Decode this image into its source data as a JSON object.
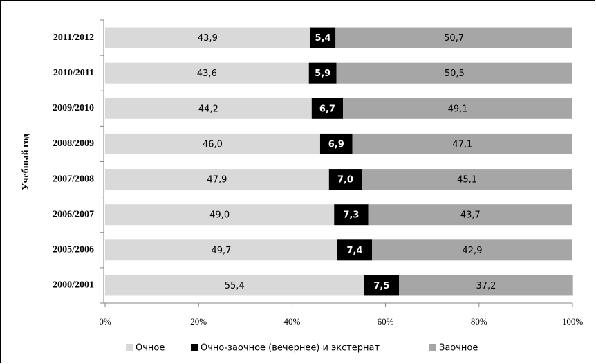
{
  "chart_data": {
    "type": "stacked_barh",
    "ylabel": "Учебный год",
    "categories": [
      "2011/2012",
      "2010/2011",
      "2009/2010",
      "2008/2009",
      "2007/2008",
      "2006/2007",
      "2005/2006",
      "2000/2001"
    ],
    "series": [
      {
        "name": "Очное",
        "color": "#d9d9d9",
        "label_color": "#000000",
        "values": [
          43.9,
          43.6,
          44.2,
          46.0,
          47.9,
          49.0,
          49.7,
          55.4
        ],
        "value_labels": [
          "43,9",
          "43,6",
          "44,2",
          "46,0",
          "47,9",
          "49,0",
          "49,7",
          "55,4"
        ]
      },
      {
        "name": "Очно-заочное (вечернее) и экстернат",
        "color": "#000000",
        "label_color": "#ffffff",
        "values": [
          5.4,
          5.9,
          6.7,
          6.9,
          7.0,
          7.3,
          7.4,
          7.5
        ],
        "value_labels": [
          "5,4",
          "5,9",
          "6,7",
          "6,9",
          "7,0",
          "7,3",
          "7,4",
          "7,5"
        ]
      },
      {
        "name": "Заочное",
        "color": "#a6a6a6",
        "label_color": "#000000",
        "values": [
          50.7,
          50.5,
          49.1,
          47.1,
          45.1,
          43.7,
          42.9,
          37.2
        ],
        "value_labels": [
          "50,7",
          "50,5",
          "49,1",
          "47,1",
          "45,1",
          "43,7",
          "42,9",
          "37,2"
        ]
      }
    ],
    "xlim": [
      0,
      100
    ],
    "xticks": [
      {
        "value": 0,
        "label": "0%"
      },
      {
        "value": 20,
        "label": "20%"
      },
      {
        "value": 40,
        "label": "40%"
      },
      {
        "value": 60,
        "label": "60%"
      },
      {
        "value": 80,
        "label": "80%"
      },
      {
        "value": 100,
        "label": "100%"
      }
    ],
    "legend": "bottom"
  }
}
